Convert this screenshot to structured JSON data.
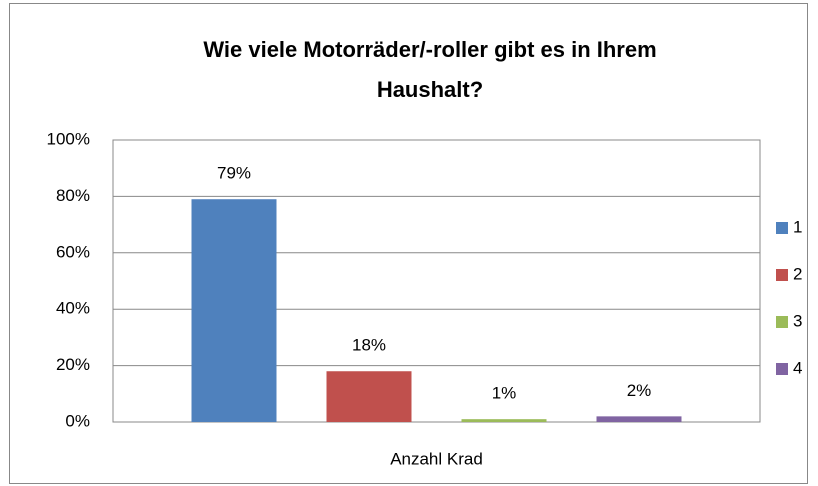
{
  "chart_data": {
    "type": "bar",
    "title": "Wie viele Motorräder/-roller gibt es in Ihrem Haushalt?",
    "categories": [
      "Anzahl Krad"
    ],
    "series": [
      {
        "name": "1",
        "color": "#4f81bd",
        "values": [
          79
        ],
        "value_labels": [
          "79%"
        ]
      },
      {
        "name": "2",
        "color": "#c0504d",
        "values": [
          18
        ],
        "value_labels": [
          "18%"
        ]
      },
      {
        "name": "3",
        "color": "#9bbb59",
        "values": [
          1
        ],
        "value_labels": [
          "1%"
        ]
      },
      {
        "name": "4",
        "color": "#8064a2",
        "values": [
          2
        ],
        "value_labels": [
          "2%"
        ]
      }
    ],
    "ylim": [
      0,
      100
    ],
    "yticks": [
      {
        "value": 0,
        "label": "0%"
      },
      {
        "value": 20,
        "label": "20%"
      },
      {
        "value": 40,
        "label": "40%"
      },
      {
        "value": 60,
        "label": "60%"
      },
      {
        "value": 80,
        "label": "80%"
      },
      {
        "value": 100,
        "label": "100%"
      }
    ],
    "grid": true,
    "legend": "right"
  }
}
